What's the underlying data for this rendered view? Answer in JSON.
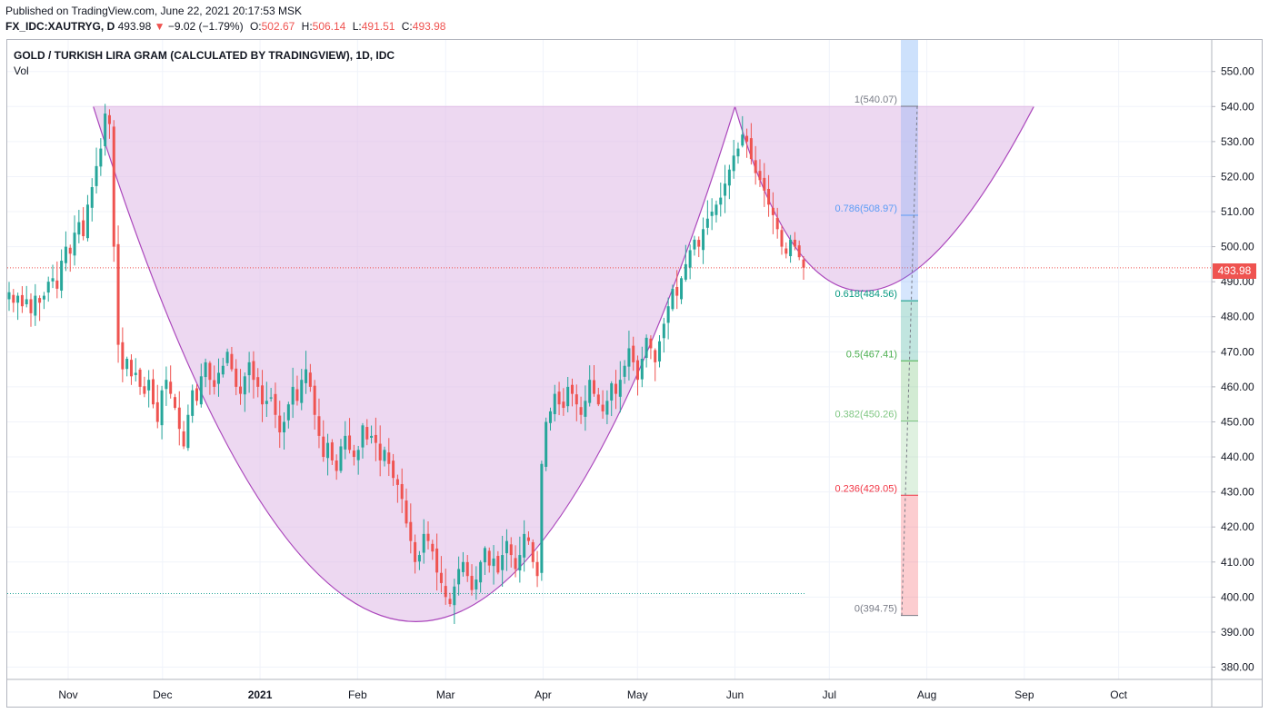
{
  "header": {
    "published": "Published on TradingView.com, June 22, 2021 20:17:53 MSK",
    "symbol": "FX_IDC:XAUTRYG, D",
    "last": "493.98",
    "change_arrow": "▼",
    "change": "−9.02 (−1.79%)",
    "open_label": "O:",
    "open": "502.67",
    "high_label": "H:",
    "high": "506.14",
    "low_label": "L:",
    "low": "491.51",
    "close_label": "C:",
    "close": "493.98"
  },
  "legend": {
    "title": "GOLD / TURKISH LIRA GRAM (CALCULATED BY TRADINGVIEW), 1D, IDC",
    "vol": "Vol"
  },
  "last_price_tag": "493.98",
  "colors": {
    "up": "#26a69a",
    "down": "#ef5350",
    "pattern_fill": "#e1bee7",
    "pattern_stroke": "#ab47bc",
    "grid": "#f0f3fa",
    "axis_text": "#131722"
  },
  "chart_data": {
    "type": "candlestick",
    "title": "GOLD / TURKISH LIRA GRAM (CALCULATED BY TRADINGVIEW), 1D, IDC",
    "ylim": [
      376.5,
      559
    ],
    "y_ticks": [
      "380.00",
      "390.00",
      "400.00",
      "410.00",
      "420.00",
      "430.00",
      "440.00",
      "450.00",
      "460.00",
      "470.00",
      "480.00",
      "490.00",
      "500.00",
      "510.00",
      "520.00",
      "530.00",
      "540.00",
      "550.00"
    ],
    "x_ticks": [
      {
        "label": "Nov",
        "day": 0
      },
      {
        "label": "Dec",
        "day": 30
      },
      {
        "label": "2021",
        "day": 61
      },
      {
        "label": "Feb",
        "day": 92
      },
      {
        "label": "Mar",
        "day": 120
      },
      {
        "label": "Apr",
        "day": 151
      },
      {
        "label": "May",
        "day": 181
      },
      {
        "label": "Jun",
        "day": 212
      },
      {
        "label": "Jul",
        "day": 242
      },
      {
        "label": "Aug",
        "day": 273
      },
      {
        "label": "Sep",
        "day": 304
      },
      {
        "label": "Oct",
        "day": 334
      }
    ],
    "x_start": "2020-11-01",
    "closes": [
      487,
      484,
      486,
      483,
      485,
      481,
      486,
      484,
      486,
      490,
      491,
      488,
      496,
      500,
      498,
      504,
      507,
      503,
      512,
      517,
      523,
      528,
      538,
      535,
      500,
      472,
      465,
      468,
      463,
      464,
      460,
      458,
      462,
      455,
      450,
      459,
      462,
      458,
      454,
      448,
      443,
      452,
      459,
      456,
      463,
      467,
      462,
      460,
      464,
      466,
      470,
      465,
      460,
      458,
      463,
      467,
      462,
      460,
      455,
      456,
      457,
      452,
      447,
      450,
      455,
      460,
      456,
      462,
      465,
      460,
      452,
      446,
      440,
      444,
      439,
      436,
      443,
      446,
      442,
      440,
      442,
      449,
      445,
      446,
      444,
      439,
      442,
      438,
      434,
      432,
      428,
      421,
      416,
      410,
      412,
      418,
      416,
      413,
      407,
      404,
      400,
      398,
      403,
      408,
      410,
      406,
      402,
      405,
      410,
      414,
      409,
      411,
      407,
      412,
      416,
      412,
      408,
      412,
      418,
      416,
      410,
      406,
      438,
      450,
      453,
      458,
      455,
      454,
      460,
      458,
      455,
      452,
      456,
      462,
      458,
      455,
      453,
      456,
      461,
      458,
      462,
      466,
      471,
      467,
      462,
      468,
      474,
      471,
      467,
      473,
      478,
      483,
      488,
      486,
      491,
      495,
      499,
      502,
      500,
      505,
      508,
      510,
      512,
      514,
      518,
      522,
      526,
      528,
      532,
      530,
      525,
      521,
      519,
      516,
      512,
      509,
      505,
      500,
      498,
      502,
      500,
      497,
      494
    ],
    "series": [
      {
        "name": "FX_IDC:XAUTRYG",
        "last": 493.98,
        "open": 502.67,
        "high": 506.14,
        "low": 491.51,
        "close": 493.98
      }
    ],
    "pattern": {
      "type": "cup",
      "left_top": 540.0,
      "bottom": 393.0,
      "right_top": 540.0,
      "handle_bottom": 486.0
    },
    "fib_levels": [
      {
        "ratio": 1.0,
        "value": 540.07,
        "label": "1(540.07)",
        "color": "#787b86"
      },
      {
        "ratio": 0.786,
        "value": 508.97,
        "label": "0.786(508.97)",
        "color": "#5b9cf6"
      },
      {
        "ratio": 0.618,
        "value": 484.56,
        "label": "0.618(484.56)",
        "color": "#089981"
      },
      {
        "ratio": 0.5,
        "value": 467.41,
        "label": "0.5(467.41)",
        "color": "#4caf50"
      },
      {
        "ratio": 0.382,
        "value": 450.26,
        "label": "0.382(450.26)",
        "color": "#81c784"
      },
      {
        "ratio": 0.236,
        "value": 429.05,
        "label": "0.236(429.05)",
        "color": "#f23645"
      },
      {
        "ratio": 0.0,
        "value": 394.75,
        "label": "0(394.75)",
        "color": "#787b86"
      }
    ],
    "reference_lines": [
      {
        "value": 401.0,
        "color": "#26a69a"
      },
      {
        "value": 493.98,
        "color": "#ef5350"
      }
    ]
  }
}
